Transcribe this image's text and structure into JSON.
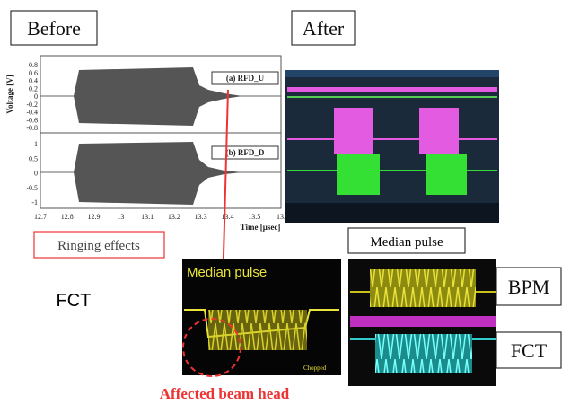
{
  "before": {
    "label": "Before",
    "plot": {
      "y_axis_label": "Voltage [V]",
      "x_axis_label": "Time [μsec]",
      "panels": [
        {
          "label": "(a) RFD_U",
          "yticks": [
            "0.8",
            "0.6",
            "0.4",
            "0.2",
            "0",
            "-0.2",
            "-0.4",
            "-0.6",
            "-0.8"
          ]
        },
        {
          "label": "(b) RFD_D",
          "yticks": [
            "1",
            "0.5",
            "0",
            "-0.5",
            "-1"
          ]
        }
      ],
      "xticks": [
        "12.7",
        "12.8",
        "12.9",
        "13",
        "13.1",
        "13.2",
        "13.3",
        "13.4",
        "13.5",
        "13."
      ]
    },
    "annotation": "Ringing effects"
  },
  "after": {
    "label": "After",
    "annotation": "Median pulse"
  },
  "bottom": {
    "left_label": "FCT",
    "scope_title": "Median pulse",
    "scope_note": "Chopped",
    "caption": "Affected beam head",
    "right_labels": [
      "BPM",
      "FCT"
    ]
  }
}
